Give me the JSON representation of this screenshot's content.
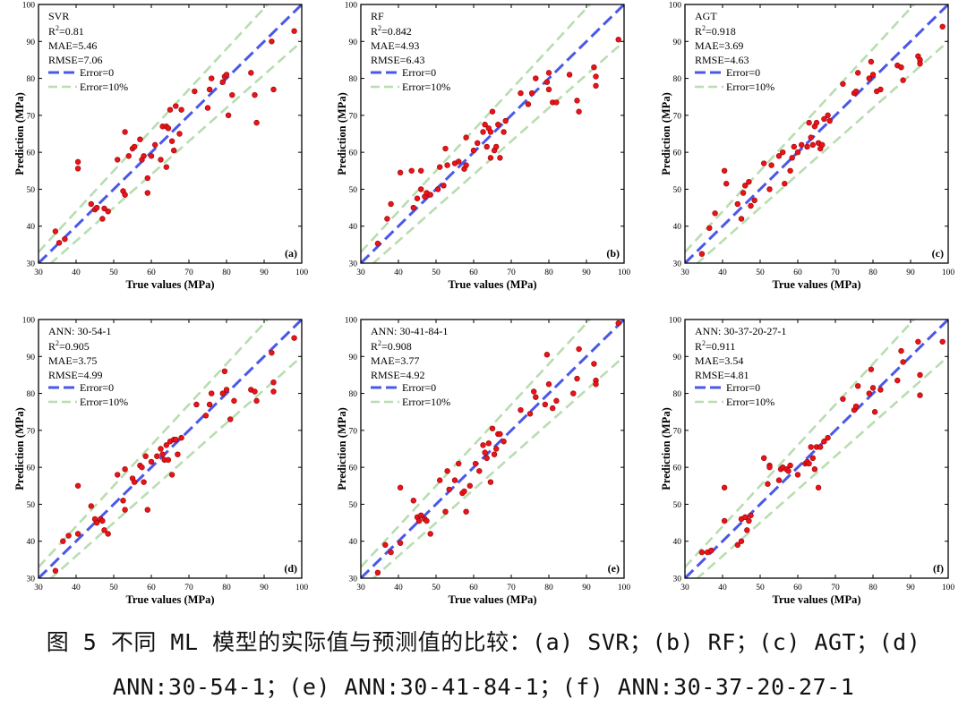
{
  "figure_caption": {
    "line1": "图 5 不同 ML 模型的实际值与预测值的比较：(a) SVR；(b) RF；(c) AGT；(d)",
    "line2": "ANN:30-54-1；(e) ANN:30-41-84-1；(f) ANN:30-37-20-27-1"
  },
  "legend": {
    "error0": "Error=0",
    "error10": "Error=10%"
  },
  "colors": {
    "point": "#e8141a",
    "ideal_line": "#4a58e8",
    "band_line": "#b8ddb0",
    "axis": "#000000"
  },
  "chart_data": [
    {
      "type": "scatter",
      "panel_label": "(a)",
      "model": "SVR",
      "metrics": {
        "r2": "R2=0.81",
        "r2_value": "=0.81",
        "mae": "MAE=5.46",
        "rmse": "RMSE=7.06"
      },
      "xlabel": "True values (MPa)",
      "ylabel": "Prediction (MPa)",
      "xlim": [
        30,
        100
      ],
      "ylim": [
        30,
        100
      ],
      "xticks": [
        "30",
        "40",
        "50",
        "60",
        "70",
        "80",
        "90",
        "100"
      ],
      "yticks": [
        "30",
        "40",
        "50",
        "60",
        "70",
        "80",
        "90",
        "100"
      ],
      "points": [
        [
          34.5,
          38.6
        ],
        [
          35.5,
          35.5
        ],
        [
          37,
          36.5
        ],
        [
          40.5,
          57.4
        ],
        [
          40.5,
          55.6
        ],
        [
          44,
          46
        ],
        [
          45,
          44.5
        ],
        [
          45.5,
          45
        ],
        [
          47,
          42
        ],
        [
          47.5,
          44.8
        ],
        [
          48.5,
          44
        ],
        [
          51,
          58
        ],
        [
          52.5,
          49.5
        ],
        [
          53,
          48.5
        ],
        [
          53,
          65.5
        ],
        [
          54,
          59
        ],
        [
          55,
          61
        ],
        [
          55.5,
          61.5
        ],
        [
          57,
          63.5
        ],
        [
          57.5,
          58
        ],
        [
          58,
          59
        ],
        [
          59,
          49
        ],
        [
          59,
          53
        ],
        [
          60,
          59
        ],
        [
          61,
          62
        ],
        [
          62.5,
          58
        ],
        [
          63,
          67
        ],
        [
          64,
          67
        ],
        [
          64,
          56
        ],
        [
          64.5,
          66.5
        ],
        [
          65,
          71.5
        ],
        [
          65.5,
          63
        ],
        [
          66,
          60.5
        ],
        [
          66.5,
          72.5
        ],
        [
          67.5,
          65
        ],
        [
          68,
          71.5
        ],
        [
          71.5,
          76.5
        ],
        [
          75,
          72
        ],
        [
          75.5,
          77
        ],
        [
          76,
          80
        ],
        [
          79,
          79
        ],
        [
          79.5,
          80.5
        ],
        [
          80,
          81
        ],
        [
          80.5,
          70
        ],
        [
          81.5,
          75.5
        ],
        [
          86.5,
          81.5
        ],
        [
          87.5,
          75.5
        ],
        [
          88,
          68
        ],
        [
          92,
          90
        ],
        [
          92.5,
          77
        ],
        [
          98,
          92.8
        ]
      ]
    },
    {
      "type": "scatter",
      "panel_label": "(b)",
      "model": "RF",
      "metrics": {
        "r2": "R2=0.842",
        "r2_value": "=0.842",
        "mae": "MAE=4.93",
        "rmse": "RMSE=6.43"
      },
      "xlabel": "True values (MPa)",
      "ylabel": "Prediction (MPa)",
      "xlim": [
        30,
        100
      ],
      "ylim": [
        30,
        100
      ],
      "xticks": [
        "30",
        "40",
        "50",
        "60",
        "70",
        "80",
        "90",
        "100"
      ],
      "yticks": [
        "30",
        "40",
        "50",
        "60",
        "70",
        "80",
        "90",
        "100"
      ],
      "points": [
        [
          34.5,
          35.3
        ],
        [
          37,
          42
        ],
        [
          38,
          46
        ],
        [
          40.5,
          54.5
        ],
        [
          43.5,
          55
        ],
        [
          44,
          45
        ],
        [
          45,
          47.5
        ],
        [
          46,
          50
        ],
        [
          46,
          55
        ],
        [
          47,
          48
        ],
        [
          47.5,
          49
        ],
        [
          48.5,
          48.5
        ],
        [
          50.5,
          50
        ],
        [
          51,
          56
        ],
        [
          52,
          51
        ],
        [
          52.5,
          61
        ],
        [
          53,
          56.5
        ],
        [
          55,
          57
        ],
        [
          56,
          57.5
        ],
        [
          57.5,
          55.5
        ],
        [
          58,
          56.5
        ],
        [
          58,
          64
        ],
        [
          60,
          60.5
        ],
        [
          61,
          62.5
        ],
        [
          62.5,
          65.5
        ],
        [
          63,
          67.5
        ],
        [
          63.5,
          61.5
        ],
        [
          64,
          66.5
        ],
        [
          64.5,
          65.5
        ],
        [
          64.5,
          58.5
        ],
        [
          65,
          71
        ],
        [
          65.5,
          60.5
        ],
        [
          66,
          61.5
        ],
        [
          66.5,
          67.5
        ],
        [
          67,
          58.5
        ],
        [
          68,
          65.5
        ],
        [
          68.5,
          68.5
        ],
        [
          72.5,
          76
        ],
        [
          74.5,
          73
        ],
        [
          75.5,
          76
        ],
        [
          76.5,
          80
        ],
        [
          79.5,
          79
        ],
        [
          80,
          77
        ],
        [
          80,
          81.5
        ],
        [
          81,
          73.5
        ],
        [
          82,
          73.5
        ],
        [
          85.5,
          81
        ],
        [
          87.5,
          74
        ],
        [
          88,
          71
        ],
        [
          92,
          83
        ],
        [
          92.5,
          80.5
        ],
        [
          92.5,
          78
        ],
        [
          98.5,
          90.5
        ]
      ]
    },
    {
      "type": "scatter",
      "panel_label": "(c)",
      "model": "AGT",
      "metrics": {
        "r2": "R2=0.918",
        "r2_value": "=0.918",
        "mae": "MAE=3.69",
        "rmse": "RMSE=4.63"
      },
      "xlabel": "True values (MPa)",
      "ylabel": "Prediction (MPa)",
      "xlim": [
        30,
        100
      ],
      "ylim": [
        30,
        100
      ],
      "xticks": [
        "30",
        "40",
        "50",
        "60",
        "70",
        "80",
        "90",
        "100"
      ],
      "yticks": [
        "30",
        "40",
        "50",
        "60",
        "70",
        "80",
        "90",
        "100"
      ],
      "points": [
        [
          34.5,
          32.5
        ],
        [
          36.5,
          39.5
        ],
        [
          38,
          43.5
        ],
        [
          40.5,
          55
        ],
        [
          41,
          51.5
        ],
        [
          44,
          46
        ],
        [
          45,
          42
        ],
        [
          45.5,
          49
        ],
        [
          46,
          51
        ],
        [
          47,
          52
        ],
        [
          47.5,
          45.5
        ],
        [
          48.5,
          47
        ],
        [
          51,
          57
        ],
        [
          52.5,
          50
        ],
        [
          53,
          56.5
        ],
        [
          55,
          59
        ],
        [
          56,
          60
        ],
        [
          56.5,
          51.5
        ],
        [
          58,
          55
        ],
        [
          58.5,
          58.5
        ],
        [
          59,
          61.5
        ],
        [
          60,
          60
        ],
        [
          61,
          62
        ],
        [
          62.5,
          61.5
        ],
        [
          63,
          68
        ],
        [
          63.5,
          64
        ],
        [
          64,
          62
        ],
        [
          64.5,
          67
        ],
        [
          65,
          68
        ],
        [
          65.5,
          62.5
        ],
        [
          66,
          61
        ],
        [
          66.5,
          62
        ],
        [
          67,
          69
        ],
        [
          68,
          70
        ],
        [
          68.5,
          68.5
        ],
        [
          72,
          78.5
        ],
        [
          75,
          76
        ],
        [
          75.5,
          76.5
        ],
        [
          76,
          81.5
        ],
        [
          79,
          80
        ],
        [
          79.5,
          84.5
        ],
        [
          80,
          81
        ],
        [
          81,
          76.5
        ],
        [
          82,
          77
        ],
        [
          86.5,
          83.5
        ],
        [
          87.5,
          83
        ],
        [
          88,
          79.5
        ],
        [
          92,
          86
        ],
        [
          92.5,
          85
        ],
        [
          92.5,
          84
        ],
        [
          98.5,
          94
        ]
      ]
    },
    {
      "type": "scatter",
      "panel_label": "(d)",
      "model": "ANN: 30-54-1",
      "metrics": {
        "r2": "R2=0.905",
        "r2_value": "=0.905",
        "mae": "MAE=3.75",
        "rmse": "RMSE=4.99"
      },
      "xlabel": "True values (MPa)",
      "ylabel": "Prediction (MPa)",
      "xlim": [
        30,
        100
      ],
      "ylim": [
        30,
        100
      ],
      "xticks": [
        "30",
        "40",
        "50",
        "60",
        "70",
        "80",
        "90",
        "100"
      ],
      "yticks": [
        "30",
        "40",
        "50",
        "60",
        "70",
        "80",
        "90",
        "100"
      ],
      "points": [
        [
          34.5,
          32
        ],
        [
          36.5,
          40
        ],
        [
          38,
          41.5
        ],
        [
          40.5,
          55
        ],
        [
          40.5,
          42
        ],
        [
          44,
          49.5
        ],
        [
          45,
          46
        ],
        [
          45.5,
          45
        ],
        [
          46.5,
          46
        ],
        [
          47,
          45.5
        ],
        [
          47.5,
          43
        ],
        [
          48.5,
          42
        ],
        [
          51,
          58
        ],
        [
          52.5,
          51
        ],
        [
          53,
          59.5
        ],
        [
          53,
          48.5
        ],
        [
          55,
          57
        ],
        [
          55.5,
          56
        ],
        [
          57,
          60.5
        ],
        [
          57.5,
          60
        ],
        [
          58,
          56
        ],
        [
          58.5,
          63
        ],
        [
          59,
          48.5
        ],
        [
          60,
          61.5
        ],
        [
          61.5,
          63
        ],
        [
          62.5,
          65
        ],
        [
          63,
          63.5
        ],
        [
          63.5,
          62
        ],
        [
          64,
          66
        ],
        [
          64.5,
          62
        ],
        [
          65,
          67
        ],
        [
          65.5,
          58
        ],
        [
          66,
          67.5
        ],
        [
          66.5,
          67.5
        ],
        [
          67,
          63.5
        ],
        [
          68,
          68
        ],
        [
          72,
          77
        ],
        [
          74.5,
          74
        ],
        [
          75.5,
          77
        ],
        [
          76,
          80
        ],
        [
          79,
          80
        ],
        [
          79.5,
          86
        ],
        [
          80,
          81
        ],
        [
          81,
          73
        ],
        [
          82,
          78
        ],
        [
          86.5,
          81
        ],
        [
          87.5,
          80.5
        ],
        [
          88,
          78
        ],
        [
          92,
          91
        ],
        [
          92.5,
          83
        ],
        [
          92.5,
          80.5
        ],
        [
          98,
          95
        ]
      ]
    },
    {
      "type": "scatter",
      "panel_label": "(e)",
      "model": "ANN: 30-41-84-1",
      "metrics": {
        "r2": "R2=0.908",
        "r2_value": "=0.908",
        "mae": "MAE=3.77",
        "rmse": "RMSE=4.92"
      },
      "xlabel": "True values (MPa)",
      "ylabel": "Prediction (MPa)",
      "xlim": [
        30,
        100
      ],
      "ylim": [
        30,
        100
      ],
      "xticks": [
        "30",
        "40",
        "50",
        "60",
        "70",
        "80",
        "90",
        "100"
      ],
      "yticks": [
        "30",
        "40",
        "50",
        "60",
        "70",
        "80",
        "90",
        "100"
      ],
      "points": [
        [
          34.5,
          31.5
        ],
        [
          36.5,
          39
        ],
        [
          38,
          37
        ],
        [
          40.5,
          54.5
        ],
        [
          40.5,
          39.5
        ],
        [
          44,
          51
        ],
        [
          45,
          46.5
        ],
        [
          45.5,
          45.5
        ],
        [
          46,
          47
        ],
        [
          47,
          46
        ],
        [
          47.5,
          45.5
        ],
        [
          48.5,
          42
        ],
        [
          51,
          56.5
        ],
        [
          52.5,
          48
        ],
        [
          53,
          59
        ],
        [
          53.5,
          54
        ],
        [
          55,
          56.5
        ],
        [
          56,
          61
        ],
        [
          57,
          53
        ],
        [
          57.5,
          53.5
        ],
        [
          58,
          48
        ],
        [
          59,
          55
        ],
        [
          60.5,
          61
        ],
        [
          61.5,
          59
        ],
        [
          62.5,
          66
        ],
        [
          63,
          64
        ],
        [
          63.5,
          62.5
        ],
        [
          64,
          66.5
        ],
        [
          64.5,
          56
        ],
        [
          65,
          70.5
        ],
        [
          65.5,
          63.5
        ],
        [
          66,
          65
        ],
        [
          66.5,
          69
        ],
        [
          67,
          69
        ],
        [
          68,
          67
        ],
        [
          72.5,
          75.5
        ],
        [
          75,
          74.5
        ],
        [
          76,
          80.5
        ],
        [
          76.5,
          79
        ],
        [
          79,
          77
        ],
        [
          79.5,
          90.5
        ],
        [
          80,
          82.5
        ],
        [
          81,
          76
        ],
        [
          82,
          78
        ],
        [
          86.5,
          80
        ],
        [
          87.5,
          84
        ],
        [
          88,
          92
        ],
        [
          92,
          88
        ],
        [
          92.5,
          83.5
        ],
        [
          92.5,
          82.5
        ],
        [
          98.5,
          99
        ]
      ]
    },
    {
      "type": "scatter",
      "panel_label": "(f)",
      "model": "ANN: 30-37-20-27-1",
      "metrics": {
        "r2": "R2=0.911",
        "r2_value": "=0.911",
        "mae": "MAE=3.54",
        "rmse": "RMSE=4.81"
      },
      "xlabel": "True values (MPa)",
      "ylabel": "Prediction (MPa)",
      "xlim": [
        30,
        100
      ],
      "ylim": [
        30,
        100
      ],
      "xticks": [
        "30",
        "40",
        "50",
        "60",
        "70",
        "80",
        "90",
        "100"
      ],
      "yticks": [
        "30",
        "40",
        "50",
        "60",
        "70",
        "80",
        "90",
        "100"
      ],
      "points": [
        [
          34.5,
          37
        ],
        [
          36,
          37
        ],
        [
          37,
          37.5
        ],
        [
          40.5,
          54.5
        ],
        [
          40.5,
          45.5
        ],
        [
          44,
          39
        ],
        [
          45,
          40
        ],
        [
          45,
          46
        ],
        [
          46,
          46.5
        ],
        [
          46.5,
          43
        ],
        [
          47,
          45.5
        ],
        [
          47.5,
          47
        ],
        [
          51,
          62.5
        ],
        [
          52,
          55.5
        ],
        [
          52.5,
          60.5
        ],
        [
          52.5,
          60
        ],
        [
          55,
          56.5
        ],
        [
          55.5,
          59.5
        ],
        [
          56,
          60
        ],
        [
          57,
          59.5
        ],
        [
          57.5,
          59
        ],
        [
          58,
          60.5
        ],
        [
          60,
          58
        ],
        [
          62,
          61
        ],
        [
          62.5,
          61.5
        ],
        [
          63,
          61
        ],
        [
          63.5,
          65.5
        ],
        [
          64,
          62.5
        ],
        [
          64.5,
          59.5
        ],
        [
          65,
          65.5
        ],
        [
          65.5,
          54.5
        ],
        [
          66,
          65.5
        ],
        [
          67,
          67
        ],
        [
          68,
          68
        ],
        [
          72,
          78.5
        ],
        [
          75,
          75.5
        ],
        [
          75.5,
          76.5
        ],
        [
          76,
          82
        ],
        [
          79,
          80
        ],
        [
          79.5,
          86.5
        ],
        [
          80,
          81.5
        ],
        [
          80.5,
          75
        ],
        [
          82,
          81
        ],
        [
          86.5,
          83.5
        ],
        [
          87.5,
          91.5
        ],
        [
          88,
          88.5
        ],
        [
          92,
          94
        ],
        [
          92.5,
          85
        ],
        [
          92.5,
          79.5
        ],
        [
          98.5,
          94
        ]
      ]
    }
  ]
}
